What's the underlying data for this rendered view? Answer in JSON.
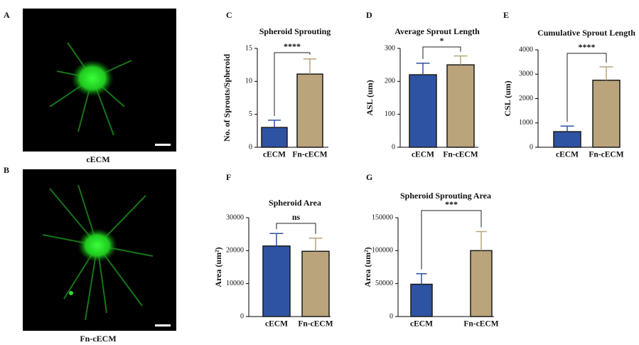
{
  "images": [
    {
      "label": "A",
      "caption": "cECM"
    },
    {
      "label": "B",
      "caption": "Fn-cECM"
    }
  ],
  "chart_data": [
    {
      "type": "bar",
      "panel_label": "C",
      "title": "Spheroid Sprouting",
      "ylabel": "No. of Sprouts/Spheroid",
      "categories": [
        "cECM",
        "Fn-cECM"
      ],
      "values": [
        3,
        11.1
      ],
      "errors": [
        1.1,
        2.3
      ],
      "colors": [
        "#2f53a3",
        "#b9a47b"
      ],
      "ylim": [
        0,
        15
      ],
      "yticks": [
        0,
        5,
        10,
        15
      ],
      "annotation": "****"
    },
    {
      "type": "bar",
      "panel_label": "D",
      "title": "Average Sprout Length",
      "ylabel": "ASL (um)",
      "categories": [
        "cECM",
        "Fn-cECM"
      ],
      "values": [
        220,
        250
      ],
      "errors": [
        35,
        27
      ],
      "colors": [
        "#2f53a3",
        "#b9a47b"
      ],
      "ylim": [
        0,
        300
      ],
      "yticks": [
        0,
        100,
        200,
        300
      ],
      "annotation": "*"
    },
    {
      "type": "bar",
      "panel_label": "E",
      "title": "Cumulative Sprout Length",
      "ylabel": "CSL (um)",
      "categories": [
        "cECM",
        "Fn-cECM"
      ],
      "values": [
        640,
        2750
      ],
      "errors": [
        230,
        550
      ],
      "colors": [
        "#2f53a3",
        "#b9a47b"
      ],
      "ylim": [
        0,
        4000
      ],
      "yticks": [
        0,
        1000,
        2000,
        3000,
        4000
      ],
      "annotation": "****"
    },
    {
      "type": "bar",
      "panel_label": "F",
      "title": "Spheroid Area",
      "ylabel": "Area (um²)",
      "categories": [
        "cECM",
        "Fn-cECM"
      ],
      "values": [
        21400,
        19800
      ],
      "errors": [
        3800,
        4000
      ],
      "colors": [
        "#2f53a3",
        "#b9a47b"
      ],
      "ylim": [
        0,
        30000
      ],
      "yticks": [
        0,
        10000,
        20000,
        30000
      ],
      "annotation": "ns"
    },
    {
      "type": "bar",
      "panel_label": "G",
      "title": "Spheroid Sprouting Area",
      "ylabel": "Area (um²)",
      "categories": [
        "cECM",
        "Fn-cECM"
      ],
      "values": [
        49000,
        100000
      ],
      "errors": [
        16000,
        29000
      ],
      "colors": [
        "#2f53a3",
        "#b9a47b"
      ],
      "ylim": [
        0,
        150000
      ],
      "yticks": [
        0,
        50000,
        100000,
        150000
      ],
      "annotation": "***"
    }
  ]
}
